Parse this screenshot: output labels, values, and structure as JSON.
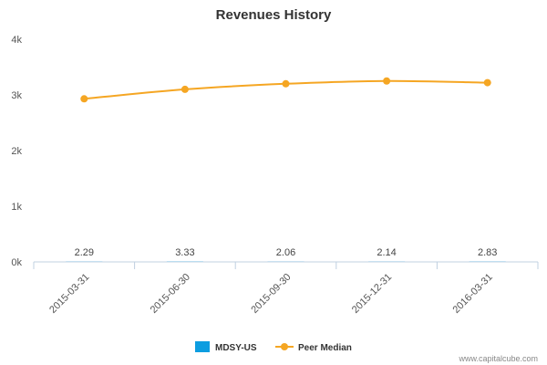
{
  "chart_data": {
    "type": "bar",
    "title": "Revenues History",
    "categories": [
      "2015-03-31",
      "2015-06-30",
      "2015-09-30",
      "2015-12-31",
      "2016-03-31"
    ],
    "y_ticks": [
      "0k",
      "1k",
      "2k",
      "3k",
      "4k"
    ],
    "ylim": [
      0,
      4000
    ],
    "grid": false,
    "legend_position": "bottom",
    "series": [
      {
        "name": "MDSY-US",
        "type": "bar",
        "color": "#0d9de0",
        "values": [
          2.29,
          3.33,
          2.06,
          2.14,
          2.83
        ],
        "data_labels": [
          "2.29",
          "3.33",
          "2.06",
          "2.14",
          "2.83"
        ]
      },
      {
        "name": "Peer Median",
        "type": "line",
        "color": "#f5a623",
        "values": [
          2930,
          3100,
          3200,
          3250,
          3220
        ]
      }
    ]
  },
  "credit": "www.capitalcube.com"
}
